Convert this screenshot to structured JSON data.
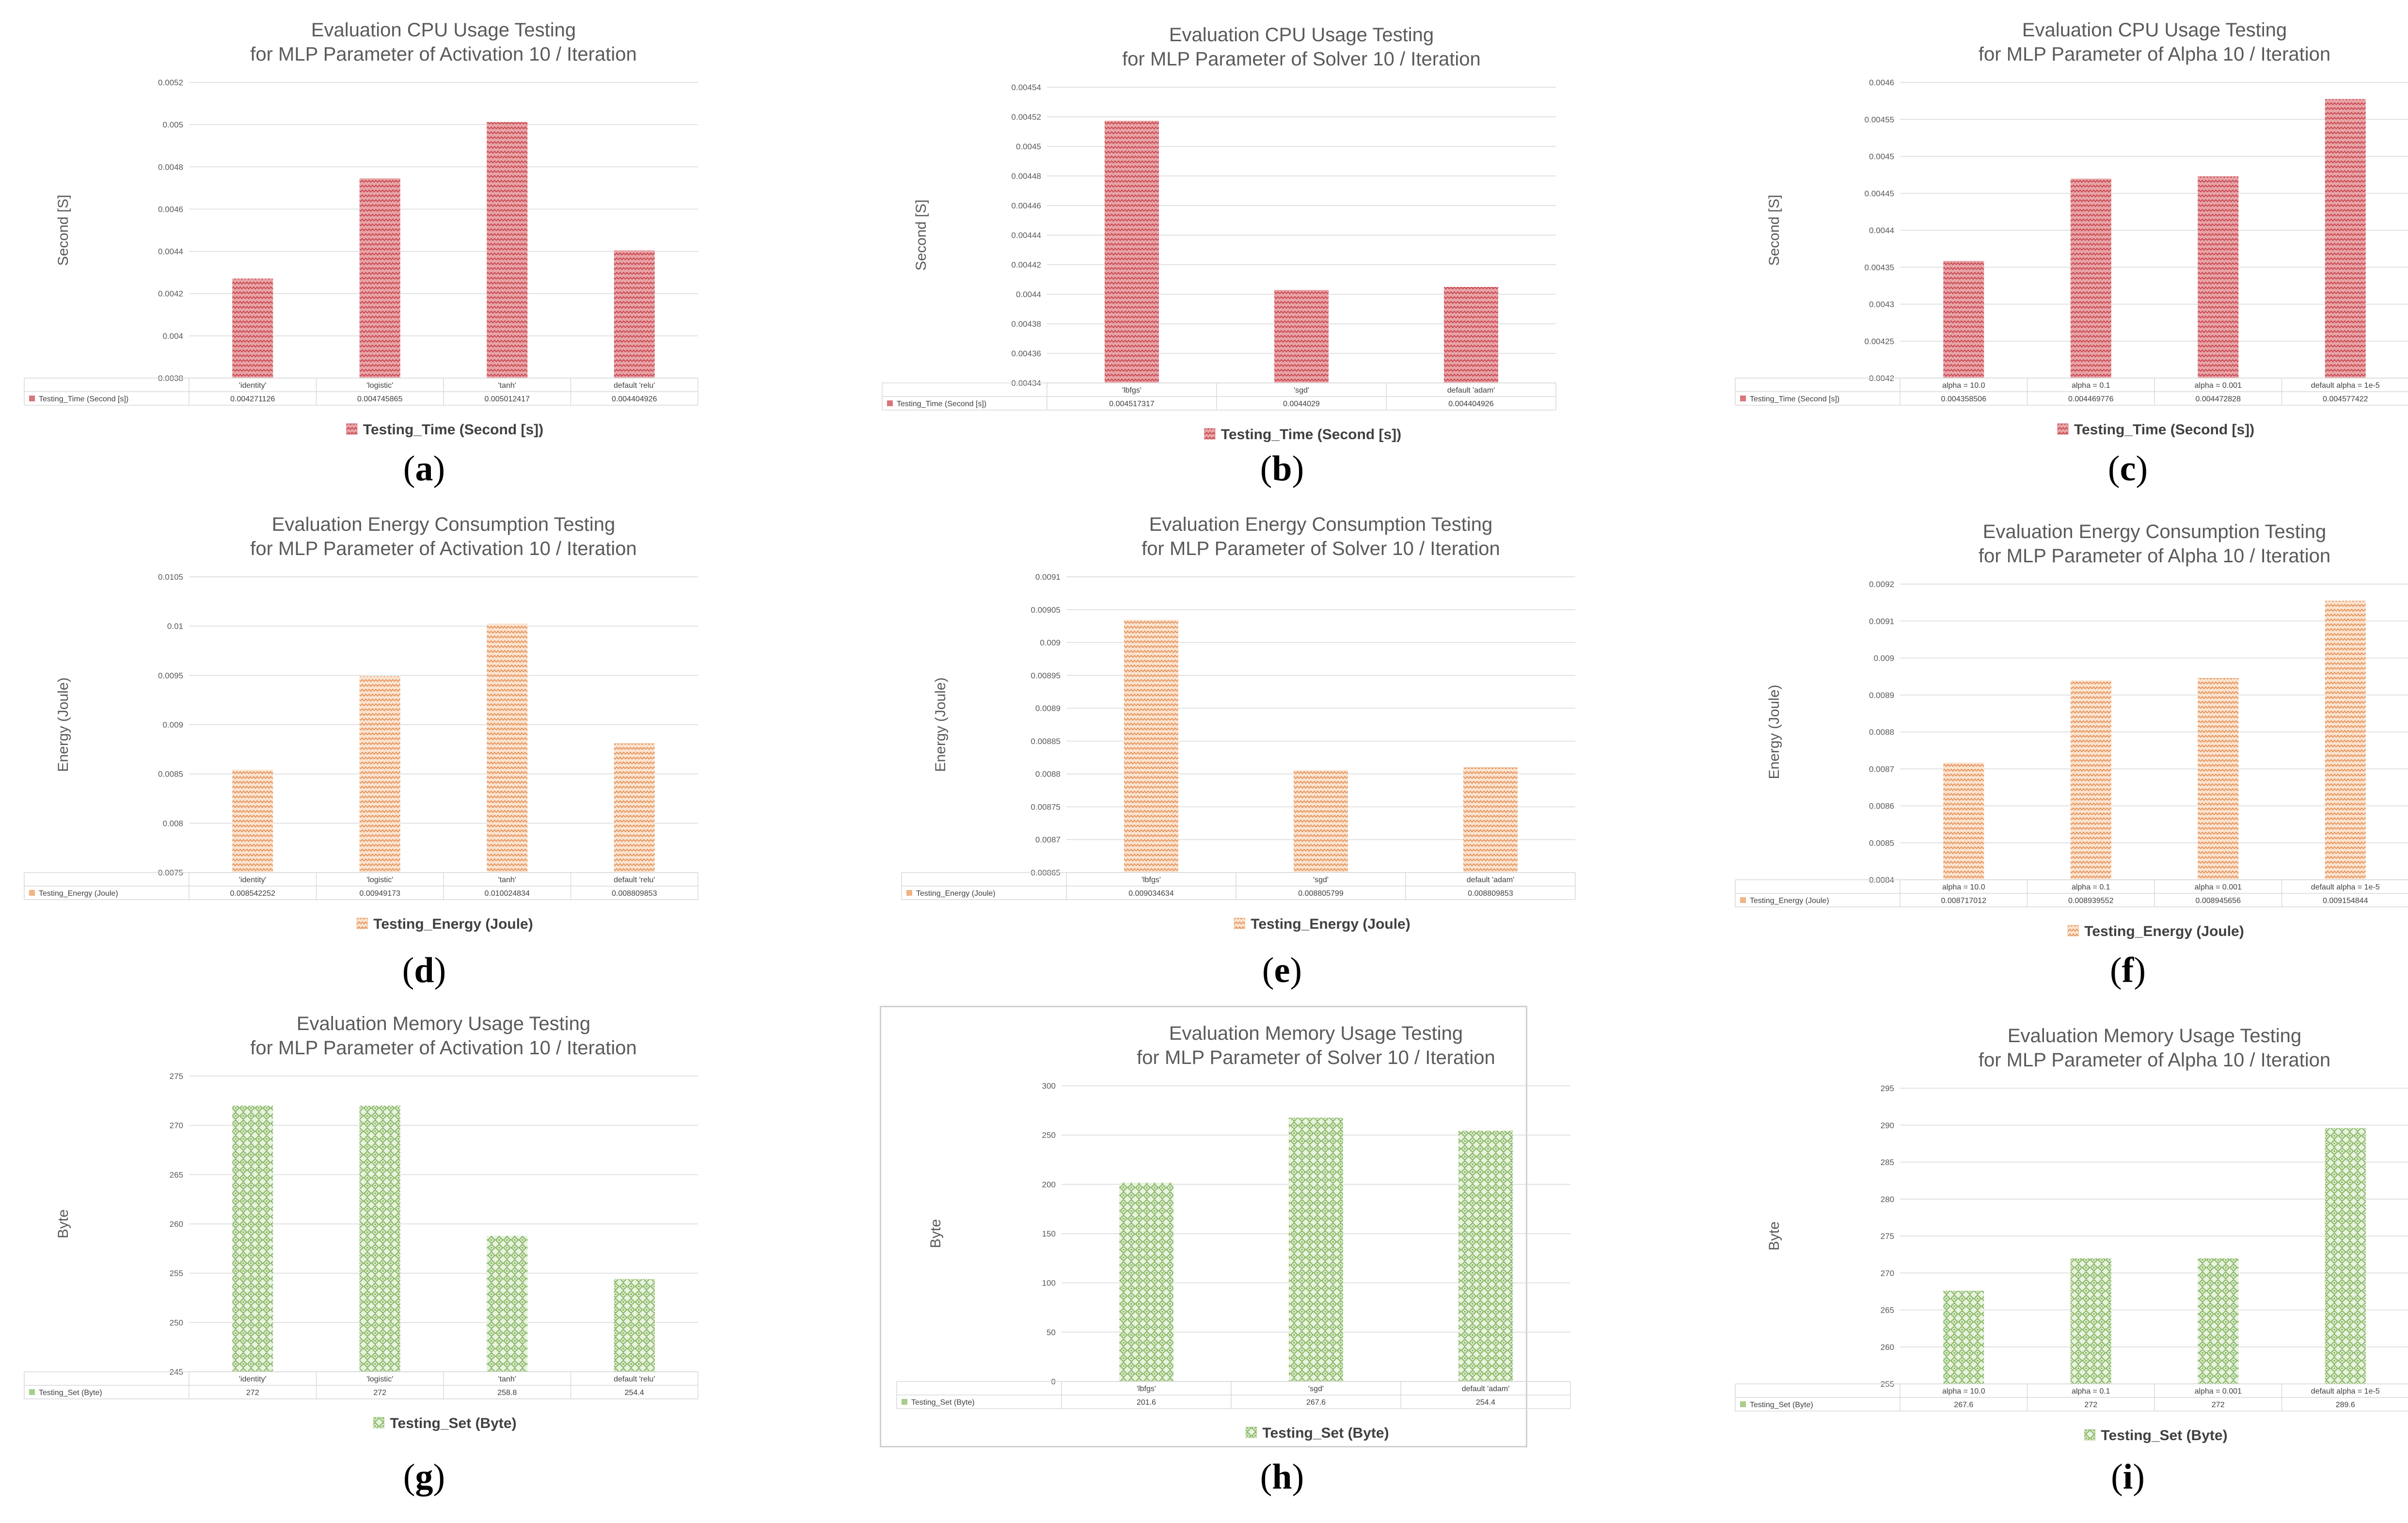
{
  "colors": {
    "cpu": "#d9757b",
    "energy": "#f0b484",
    "memory": "#a9cc8c",
    "grid": "#d9d9d9"
  },
  "chart_data": [
    {
      "type": "bar",
      "id": "a",
      "panel_label": "a",
      "title": [
        "Evaluation CPU Usage Testing",
        "for MLP Parameter of Activation  10 / Iteration"
      ],
      "ylabel": "Second [S]",
      "ylim": [
        0.0038,
        0.0052
      ],
      "yticks": [
        "0.0038",
        "0.004",
        "0.0042",
        "0.0044",
        "0.0046",
        "0.0048",
        "0.005",
        "0.0052"
      ],
      "categories": [
        "'identity'",
        "'logistic'",
        "'tanh'",
        "default 'relu'"
      ],
      "series": [
        {
          "name": "Testing_Time (Second [s])",
          "values": [
            0.004271126,
            0.004745865,
            0.005012417,
            0.004404926
          ]
        }
      ],
      "value_labels": [
        "0.004271126",
        "0.004745865",
        "0.005012417",
        "0.004404926"
      ],
      "legend": "Testing_Time (Second [s])",
      "color_key": "cpu"
    },
    {
      "type": "bar",
      "id": "b",
      "panel_label": "b",
      "title": [
        "Evaluation CPU Usage Testing",
        "for MLP Parameter of Solver  10 / Iteration"
      ],
      "ylabel": "Second [S]",
      "ylim": [
        0.00434,
        0.00454
      ],
      "yticks": [
        "0.00434",
        "0.00436",
        "0.00438",
        "0.0044",
        "0.00442",
        "0.00444",
        "0.00446",
        "0.00448",
        "0.0045",
        "0.00452",
        "0.00454"
      ],
      "categories": [
        "'lbfgs'",
        "'sgd'",
        "default 'adam'"
      ],
      "series": [
        {
          "name": "Testing_Time (Second [s])",
          "values": [
            0.004517317,
            0.0044029,
            0.004404926
          ]
        }
      ],
      "value_labels": [
        "0.004517317",
        "0.0044029",
        "0.004404926"
      ],
      "legend": "Testing_Time (Second [s])",
      "color_key": "cpu"
    },
    {
      "type": "bar",
      "id": "c",
      "panel_label": "c",
      "title": [
        "Evaluation CPU Usage Testing",
        "for MLP Parameter of Alpha  10 / Iteration"
      ],
      "ylabel": "Second [S]",
      "ylim": [
        0.0042,
        0.0046
      ],
      "yticks": [
        "0.0042",
        "0.00425",
        "0.0043",
        "0.00435",
        "0.0044",
        "0.00445",
        "0.0045",
        "0.00455",
        "0.0046"
      ],
      "categories": [
        "alpha = 10.0",
        "alpha = 0.1",
        "alpha = 0.001",
        "default  alpha = 1e-5"
      ],
      "series": [
        {
          "name": "Testing_Time (Second [s])",
          "values": [
            0.004358506,
            0.004469776,
            0.004472828,
            0.004577422
          ]
        }
      ],
      "value_labels": [
        "0.004358506",
        "0.004469776",
        "0.004472828",
        "0.004577422"
      ],
      "legend": "Testing_Time (Second [s])",
      "color_key": "cpu"
    },
    {
      "type": "bar",
      "id": "d",
      "panel_label": "d",
      "title": [
        "Evaluation Energy Consumption Testing",
        "for MLP Parameter of Activation  10 / Iteration"
      ],
      "ylabel": "Energy  (Joule)",
      "ylim": [
        0.0075,
        0.0105
      ],
      "yticks": [
        "0.0075",
        "0.008",
        "0.0085",
        "0.009",
        "0.0095",
        "0.01",
        "0.0105"
      ],
      "categories": [
        "'identity'",
        "'logistic'",
        "'tanh'",
        "default 'relu'"
      ],
      "series": [
        {
          "name": "Testing_Energy  (Joule)",
          "values": [
            0.008542252,
            0.00949173,
            0.010024834,
            0.008809853
          ]
        }
      ],
      "value_labels": [
        "0.008542252",
        "0.00949173",
        "0.010024834",
        "0.008809853"
      ],
      "legend": "Testing_Energy  (Joule)",
      "color_key": "energy"
    },
    {
      "type": "bar",
      "id": "e",
      "panel_label": "e",
      "title": [
        "Evaluation Energy Consumption Testing",
        "for MLP Parameter of Solver  10 / Iteration"
      ],
      "ylabel": "Energy  (Joule)",
      "ylim": [
        0.00865,
        0.0091
      ],
      "yticks": [
        "0.00865",
        "0.0087",
        "0.00875",
        "0.0088",
        "0.00885",
        "0.0089",
        "0.00895",
        "0.009",
        "0.00905",
        "0.0091"
      ],
      "categories": [
        "'lbfgs'",
        "'sgd'",
        "default 'adam'"
      ],
      "series": [
        {
          "name": "Testing_Energy  (Joule)",
          "values": [
            0.009034634,
            0.008805799,
            0.008809853
          ]
        }
      ],
      "value_labels": [
        "0.009034634",
        "0.008805799",
        "0.008809853"
      ],
      "legend": "Testing_Energy  (Joule)",
      "color_key": "energy"
    },
    {
      "type": "bar",
      "id": "f",
      "panel_label": "f",
      "title": [
        "Evaluation Energy Consumption Testing",
        "for MLP Parameter of Alpha 10 / Iteration"
      ],
      "ylabel": "Energy  (Joule)",
      "ylim": [
        0.0084,
        0.0092
      ],
      "yticks": [
        "0.0084",
        "0.0085",
        "0.0086",
        "0.0087",
        "0.0088",
        "0.0089",
        "0.009",
        "0.0091",
        "0.0092"
      ],
      "categories": [
        "alpha = 10.0",
        "alpha = 0.1",
        "alpha = 0.001",
        "default  alpha = 1e-5"
      ],
      "series": [
        {
          "name": "Testing_Energy  (Joule)",
          "values": [
            0.008717012,
            0.008939552,
            0.008945656,
            0.009154844
          ]
        }
      ],
      "value_labels": [
        "0.008717012",
        "0.008939552",
        "0.008945656",
        "0.009154844"
      ],
      "legend": "Testing_Energy  (Joule)",
      "color_key": "energy"
    },
    {
      "type": "bar",
      "id": "g",
      "panel_label": "g",
      "title": [
        "Evaluation Memory Usage Testing",
        "for MLP Parameter of Activation  10 / Iteration"
      ],
      "ylabel": "Byte",
      "ylim": [
        245,
        275
      ],
      "yticks": [
        "245",
        "250",
        "255",
        "260",
        "265",
        "270",
        "275"
      ],
      "categories": [
        "'identity'",
        "'logistic'",
        "'tanh'",
        "default 'relu'"
      ],
      "series": [
        {
          "name": "Testing_Set (Byte)",
          "values": [
            272,
            272,
            258.8,
            254.4
          ]
        }
      ],
      "value_labels": [
        "272",
        "272",
        "258.8",
        "254.4"
      ],
      "legend": "Testing_Set (Byte)",
      "color_key": "memory"
    },
    {
      "type": "bar",
      "id": "h",
      "panel_label": "h",
      "title": [
        "Evaluation Memory Usage Testing",
        "for MLP Parameter of  Solver 10 / Iteration"
      ],
      "ylabel": "Byte",
      "ylim": [
        0,
        300
      ],
      "yticks": [
        "0",
        "50",
        "100",
        "150",
        "200",
        "250",
        "300"
      ],
      "categories": [
        "'lbfgs'",
        "'sgd'",
        "default 'adam'"
      ],
      "series": [
        {
          "name": "Testing_Set (Byte)",
          "values": [
            201.6,
            267.6,
            254.4
          ]
        }
      ],
      "value_labels": [
        "201.6",
        "267.6",
        "254.4"
      ],
      "legend": "Testing_Set (Byte)",
      "color_key": "memory"
    },
    {
      "type": "bar",
      "id": "i",
      "panel_label": "i",
      "title": [
        "Evaluation Memory Usage Testing",
        "for MLP Parameter of Alpha  10 / Iteration"
      ],
      "ylabel": "Byte",
      "ylim": [
        255,
        295
      ],
      "yticks": [
        "255",
        "260",
        "265",
        "270",
        "275",
        "280",
        "285",
        "290",
        "295"
      ],
      "categories": [
        "alpha = 10.0",
        "alpha = 0.1",
        "alpha = 0.001",
        "default  alpha = 1e-5"
      ],
      "series": [
        {
          "name": "Testing_Set (Byte)",
          "values": [
            267.6,
            272,
            272,
            289.6
          ]
        }
      ],
      "value_labels": [
        "267.6",
        "272",
        "272",
        "289.6"
      ],
      "legend": "Testing_Set (Byte)",
      "color_key": "memory"
    }
  ]
}
